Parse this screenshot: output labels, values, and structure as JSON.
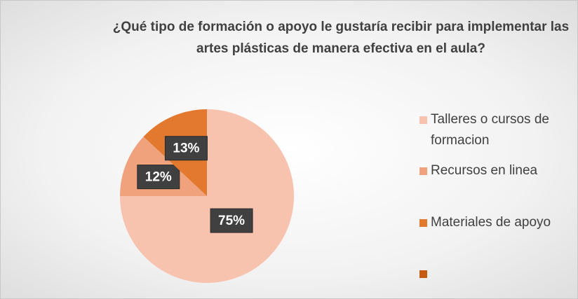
{
  "chart_data": {
    "type": "pie",
    "title": "¿Qué tipo de formación o apoyo le gustaría recibir para implementar las artes plásticas de manera efectiva en el aula?",
    "categories": [
      "Talleres o cursos de formacion",
      "Recursos en linea",
      "Materiales de apoyo",
      null
    ],
    "values": [
      75,
      12,
      13,
      0
    ],
    "value_labels": [
      "75%",
      "12%",
      "13%",
      null
    ],
    "colors": [
      "#f7c3ae",
      "#f0a27d",
      "#e2792e",
      "#c55a11"
    ],
    "legend": "right"
  }
}
